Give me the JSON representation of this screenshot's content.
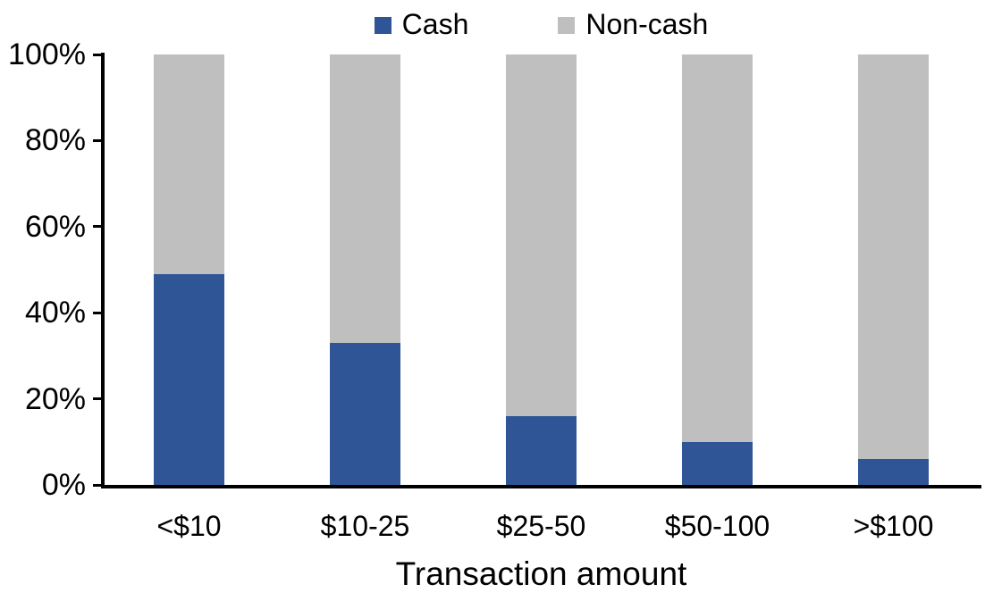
{
  "chart_data": {
    "type": "bar",
    "stacked": true,
    "orientation": "vertical",
    "title": "",
    "xlabel": "Transaction amount",
    "ylabel": "",
    "categories": [
      "<$10",
      "$10-25",
      "$25-50",
      "$50-100",
      ">$100"
    ],
    "series": [
      {
        "name": "Cash",
        "color": "#2F5597",
        "values": [
          49,
          33,
          16,
          10,
          6
        ]
      },
      {
        "name": "Non-cash",
        "color": "#BFBFBF",
        "values": [
          51,
          67,
          84,
          90,
          94
        ]
      }
    ],
    "ylim": [
      0,
      100
    ],
    "yticks": [
      {
        "value": 0,
        "label": "0%"
      },
      {
        "value": 20,
        "label": "20%"
      },
      {
        "value": 40,
        "label": "40%"
      },
      {
        "value": 60,
        "label": "60%"
      },
      {
        "value": 80,
        "label": "80%"
      },
      {
        "value": 100,
        "label": "100%"
      }
    ],
    "legend_position": "top",
    "grid": false,
    "axis_color": "#000000",
    "text_color": "#000000",
    "background": "#FFFFFF"
  }
}
